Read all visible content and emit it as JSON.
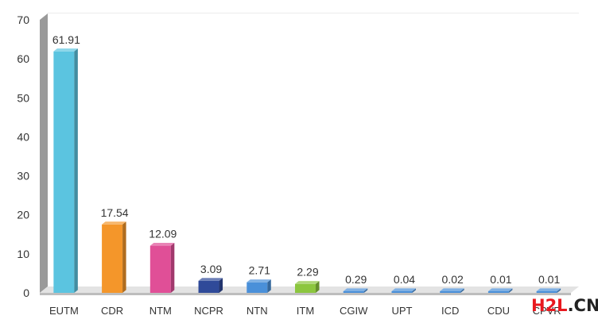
{
  "chart_data": {
    "type": "bar",
    "categories": [
      "EUTM",
      "CDR",
      "NTM",
      "NCPR",
      "NTN",
      "ITM",
      "CGIW",
      "UPT",
      "ICD",
      "CDU",
      "CPVR"
    ],
    "values": [
      61.91,
      17.54,
      12.09,
      3.09,
      2.71,
      2.29,
      0.29,
      0.04,
      0.02,
      0.01,
      0.01
    ],
    "data_labels": [
      "61.91",
      "17.54",
      "12.09",
      "3.09",
      "2.71",
      "2.29",
      "0.29",
      "0.04",
      "0.02",
      "0.01",
      "0.01"
    ],
    "bar_colors": [
      "#5bc4e0",
      "#f4962a",
      "#e04f97",
      "#2f4a99",
      "#4a90d9",
      "#8cc63f",
      "#4a90d9",
      "#4a90d9",
      "#4a90d9",
      "#4a90d9",
      "#4a90d9"
    ],
    "yticks": [
      "0",
      "10",
      "20",
      "30",
      "40",
      "50",
      "60",
      "70"
    ],
    "ylim": [
      0,
      70
    ],
    "grid": true,
    "style": "3d"
  },
  "watermark": {
    "part1": "H2L",
    "part2": ".CN",
    "color1": "#e8191f",
    "color2": "#222222"
  }
}
